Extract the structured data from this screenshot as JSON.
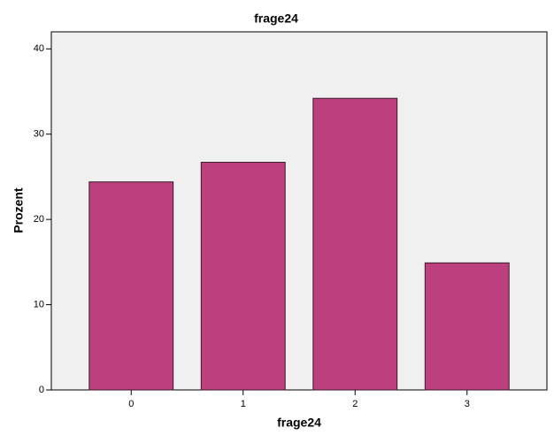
{
  "chart_data": {
    "type": "bar",
    "title": "frage24",
    "x_label": "frage24",
    "y_label": "Prozent",
    "categories": [
      "0",
      "1",
      "2",
      "3"
    ],
    "values": [
      24.4,
      26.7,
      34.2,
      14.9
    ],
    "color": "#bc407d",
    "ylim": [
      0,
      42
    ],
    "yticks": [
      0,
      10,
      20,
      30,
      40
    ],
    "grid": false
  }
}
